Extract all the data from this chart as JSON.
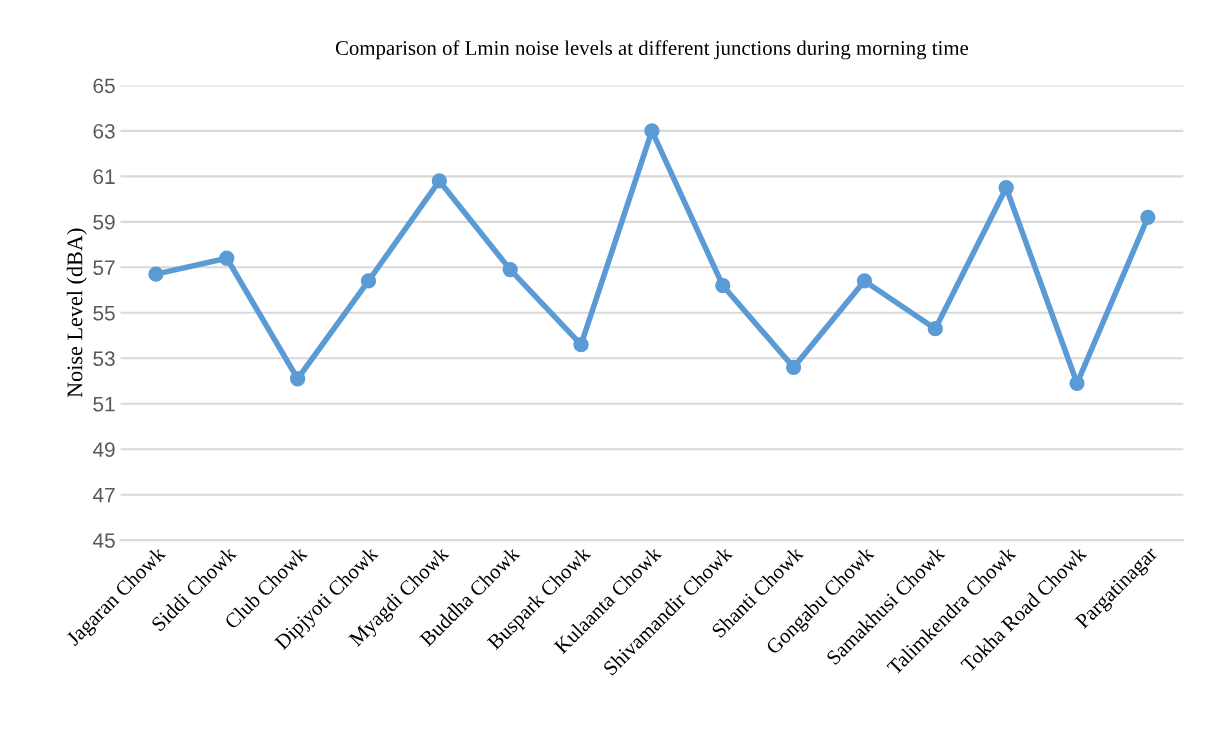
{
  "chart_data": {
    "type": "line",
    "title": "Comparison of Lmin noise levels at different junctions during morning time",
    "ylabel": "Noise Level (dBA)",
    "categories": [
      "Jagaran Chowk",
      "Siddi Chowk",
      "Club Chowk",
      "Dipjyoti Chowk",
      "Myagdi Chowk",
      "Buddha Chowk",
      "Buspark Chowk",
      "Kulaanta Chowk",
      "Shivamandir Chowk",
      "Shanti Chowk",
      "Gongabu Chowk",
      "Samakhusi Chowk",
      "Talimkendra Chowk",
      "Tokha Road Chowk",
      "Pargatinagar"
    ],
    "series": [
      {
        "color": "#5b9bd5",
        "values": [
          56.7,
          57.4,
          52.1,
          56.4,
          60.8,
          56.9,
          53.6,
          63.0,
          56.2,
          52.6,
          56.4,
          54.3,
          60.5,
          51.9,
          59.2
        ]
      }
    ],
    "ylim": [
      45,
      65
    ],
    "yticks": [
      45,
      47,
      49,
      51,
      53,
      55,
      57,
      59,
      61,
      63,
      65
    ],
    "grid": "y",
    "marker": "circle",
    "line_style": "solid"
  }
}
